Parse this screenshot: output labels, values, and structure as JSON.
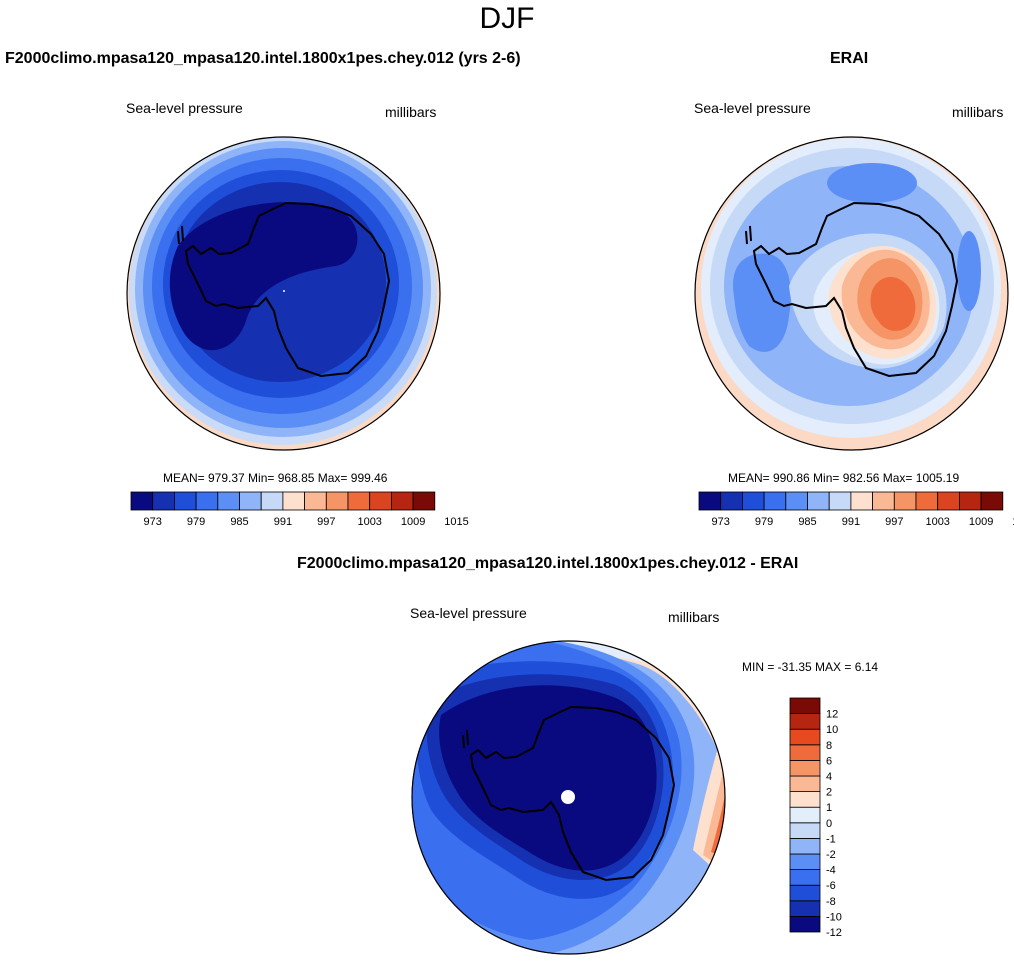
{
  "page": {
    "title": "DJF"
  },
  "panels": {
    "model": {
      "header": "F2000climo.mpasa120_mpasa120.intel.1800x1pes.chey.012 (yrs 2-6)",
      "variable": "Sea-level pressure",
      "units": "millibars",
      "stats": "MEAN= 979.37  Min= 968.85  Max= 999.46"
    },
    "obs": {
      "header": "ERAI",
      "variable": "Sea-level pressure",
      "units": "millibars",
      "stats": "MEAN= 990.86  Min= 982.56  Max= 1005.19"
    },
    "diff": {
      "header": "F2000climo.mpasa120_mpasa120.intel.1800x1pes.chey.012 - ERAI",
      "variable": "Sea-level pressure",
      "units": "millibars",
      "stats": "MIN = -31.35 MAX =   6.14"
    }
  },
  "colorbars": {
    "abs": {
      "colors": [
        "#0a0a80",
        "#1530b0",
        "#1f4fd8",
        "#3a6fef",
        "#5b8ff5",
        "#8fb4f8",
        "#c6daf8",
        "#fde0cd",
        "#fbb895",
        "#f59465",
        "#ef6b3b",
        "#db4420",
        "#b52510",
        "#7a0a05"
      ],
      "ticks": [
        "973",
        "979",
        "985",
        "991",
        "997",
        "1003",
        "1009",
        "1015"
      ]
    },
    "diff": {
      "colors": [
        "#0a0a80",
        "#1530b0",
        "#1f4fd8",
        "#3a6fef",
        "#5b8ff5",
        "#8fb4f8",
        "#c6daf8",
        "#e3eefb",
        "#fde0cd",
        "#fbb895",
        "#f59465",
        "#ef6b3b",
        "#e84a20",
        "#b52510",
        "#7a0a05"
      ],
      "ticks": [
        "12",
        "10",
        "8",
        "6",
        "4",
        "2",
        "1",
        "0",
        "-1",
        "-2",
        "-4",
        "-6",
        "-8",
        "-10",
        "-12"
      ]
    }
  }
}
